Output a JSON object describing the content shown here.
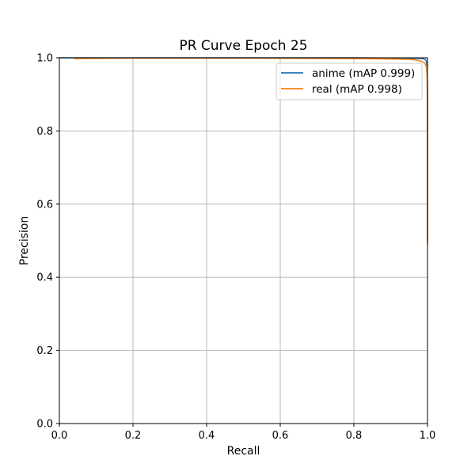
{
  "chart_data": {
    "type": "line",
    "title": "PR Curve Epoch 25",
    "xlabel": "Recall",
    "ylabel": "Precision",
    "xlim": [
      0.0,
      1.0
    ],
    "ylim": [
      0.0,
      1.0
    ],
    "xticks": [
      0.0,
      0.2,
      0.4,
      0.6,
      0.8,
      1.0
    ],
    "yticks": [
      0.0,
      0.2,
      0.4,
      0.6,
      0.8,
      1.0
    ],
    "xtick_labels": [
      "0.0",
      "0.2",
      "0.4",
      "0.6",
      "0.8",
      "1.0"
    ],
    "ytick_labels": [
      "0.0",
      "0.2",
      "0.4",
      "0.6",
      "0.8",
      "1.0"
    ],
    "grid": true,
    "legend_position": "top-right",
    "series": [
      {
        "name": "anime (mAP 0.999)",
        "color": "#1f77b4",
        "x": [
          0.0,
          0.2,
          0.5,
          0.8,
          0.95,
          0.985,
          0.993,
          0.996,
          0.998,
          0.999,
          1.0,
          1.0
        ],
        "y": [
          1.0,
          1.0,
          1.0,
          1.0,
          0.999,
          0.998,
          0.996,
          0.993,
          0.985,
          0.97,
          0.9,
          0.5
        ]
      },
      {
        "name": "real (mAP 0.998)",
        "color": "#ff7f0e",
        "x": [
          0.04,
          0.2,
          0.5,
          0.8,
          0.9,
          0.95,
          0.97,
          0.985,
          0.993,
          0.997,
          0.999,
          1.0,
          1.0
        ],
        "y": [
          0.998,
          0.999,
          0.999,
          0.998,
          0.997,
          0.996,
          0.994,
          0.99,
          0.985,
          0.975,
          0.95,
          0.85,
          0.49
        ]
      }
    ]
  }
}
